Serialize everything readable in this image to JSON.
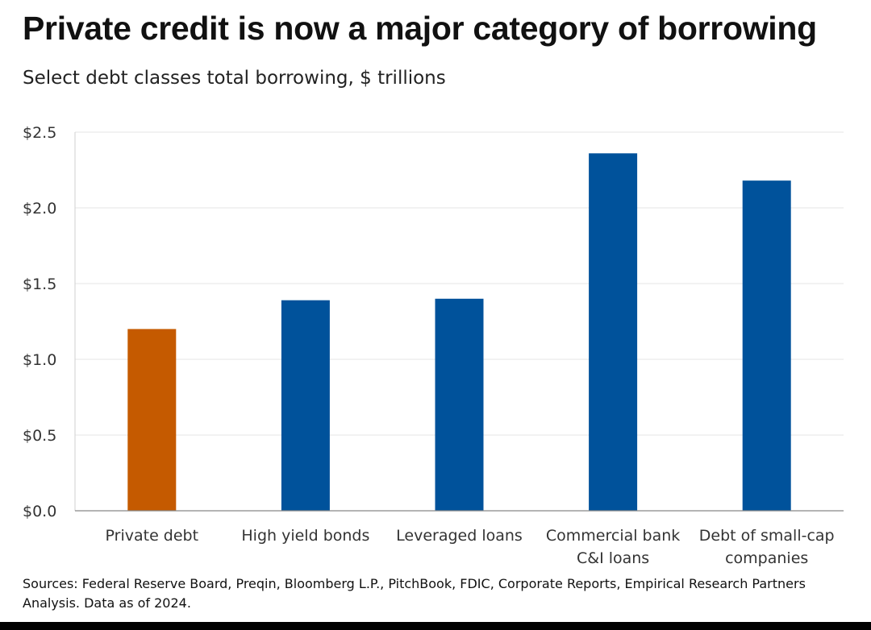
{
  "chart_data": {
    "type": "bar",
    "title": "Private credit is now a major category of borrowing",
    "subtitle": "Select debt classes total borrowing, $ trillions",
    "categories": [
      [
        "Private debt"
      ],
      [
        "High yield bonds"
      ],
      [
        "Leveraged loans"
      ],
      [
        "Commercial bank",
        "C&I loans"
      ],
      [
        "Debt of small-cap",
        "companies"
      ]
    ],
    "values": [
      1.2,
      1.39,
      1.4,
      2.36,
      2.18
    ],
    "bar_colors": [
      "#C55A00",
      "#00529B",
      "#00529B",
      "#00529B",
      "#00529B"
    ],
    "ylim": [
      0,
      2.5
    ],
    "yticks": [
      0,
      0.5,
      1.0,
      1.5,
      2.0,
      2.5
    ],
    "ytick_labels": [
      "$0.0",
      "$0.5",
      "$1.0",
      "$1.5",
      "$2.0",
      "$2.5"
    ],
    "xlabel": "",
    "ylabel": "",
    "grid": true
  },
  "source": "Sources: Federal Reserve Board, Preqin, Bloomberg L.P., PitchBook, FDIC, Corporate Reports, Empirical Research Partners Analysis. Data as of 2024."
}
